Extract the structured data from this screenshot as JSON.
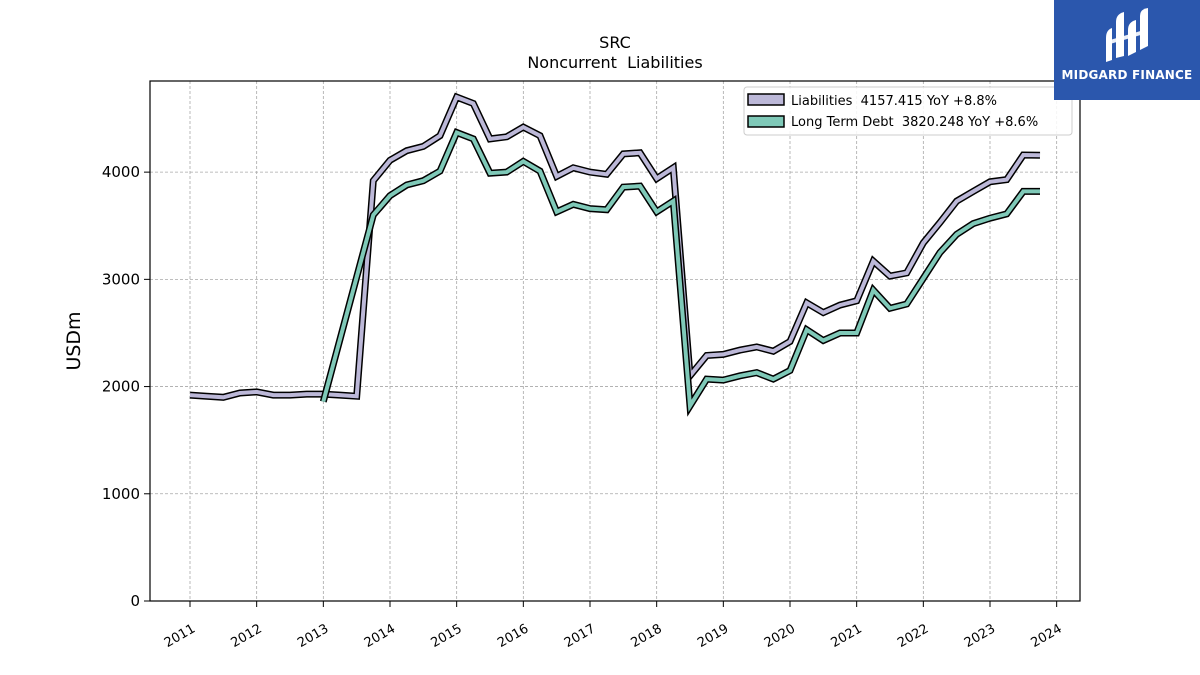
{
  "brand": {
    "name": "MIDGARD FINANCE",
    "bg_color": "#2b57ad"
  },
  "chart_data": {
    "type": "line",
    "title": "SRC",
    "subtitle": "Noncurrent  Liabilities",
    "ylabel": "USDm",
    "xlabel": "",
    "ylim": [
      0,
      4850
    ],
    "yticks": [
      0,
      1000,
      2000,
      3000,
      4000
    ],
    "xlim": [
      2010.4,
      2024.35
    ],
    "xticks": [
      2011,
      2012,
      2013,
      2014,
      2015,
      2016,
      2017,
      2018,
      2019,
      2020,
      2021,
      2022,
      2023,
      2024
    ],
    "grid": true,
    "legend_position": "top-right",
    "series": [
      {
        "name": "Liabilities",
        "legend_label": "Liabilities  4157.415 YoY +8.8%",
        "color": "#bcb8d8",
        "x": [
          2011.0,
          2011.25,
          2011.5,
          2011.75,
          2012.0,
          2012.25,
          2012.5,
          2012.75,
          2013.0,
          2013.25,
          2013.5,
          2013.75,
          2014.0,
          2014.25,
          2014.5,
          2014.75,
          2015.0,
          2015.25,
          2015.5,
          2015.75,
          2016.0,
          2016.25,
          2016.5,
          2016.75,
          2017.0,
          2017.25,
          2017.5,
          2017.75,
          2018.0,
          2018.25,
          2018.5,
          2018.75,
          2019.0,
          2019.25,
          2019.5,
          2019.75,
          2020.0,
          2020.25,
          2020.5,
          2020.75,
          2021.0,
          2021.25,
          2021.5,
          2021.75,
          2022.0,
          2022.25,
          2022.5,
          2022.75,
          2023.0,
          2023.25,
          2023.5,
          2023.75
        ],
        "values": [
          1920,
          1910,
          1900,
          1940,
          1950,
          1920,
          1920,
          1930,
          1930,
          1920,
          1910,
          3920,
          4110,
          4200,
          4240,
          4340,
          4700,
          4640,
          4310,
          4330,
          4420,
          4340,
          3960,
          4040,
          4000,
          3980,
          4170,
          4180,
          3940,
          4040,
          2100,
          2290,
          2300,
          2340,
          2370,
          2330,
          2420,
          2780,
          2690,
          2760,
          2800,
          3170,
          3030,
          3060,
          3340,
          3530,
          3730,
          3820,
          3910,
          3930,
          4160,
          4157.415
        ]
      },
      {
        "name": "Long Term Debt",
        "legend_label": "Long Term Debt  3820.248 YoY +8.6%",
        "color": "#7fc9b8",
        "x": [
          2013.0,
          2013.75,
          2014.0,
          2014.25,
          2014.5,
          2014.75,
          2015.0,
          2015.25,
          2015.5,
          2015.75,
          2016.0,
          2016.25,
          2016.5,
          2016.75,
          2017.0,
          2017.25,
          2017.5,
          2017.75,
          2018.0,
          2018.25,
          2018.5,
          2018.75,
          2019.0,
          2019.25,
          2019.5,
          2019.75,
          2020.0,
          2020.25,
          2020.5,
          2020.75,
          2021.0,
          2021.25,
          2021.5,
          2021.75,
          2022.0,
          2022.25,
          2022.5,
          2022.75,
          2023.0,
          2023.25,
          2023.5,
          2023.75
        ],
        "values": [
          1860,
          3600,
          3780,
          3880,
          3920,
          4010,
          4370,
          4310,
          3990,
          4000,
          4100,
          4010,
          3630,
          3700,
          3660,
          3650,
          3860,
          3870,
          3630,
          3730,
          1820,
          2070,
          2060,
          2100,
          2130,
          2070,
          2150,
          2530,
          2430,
          2500,
          2500,
          2900,
          2730,
          2770,
          3010,
          3250,
          3420,
          3520,
          3570,
          3610,
          3820,
          3820.248
        ]
      }
    ]
  }
}
